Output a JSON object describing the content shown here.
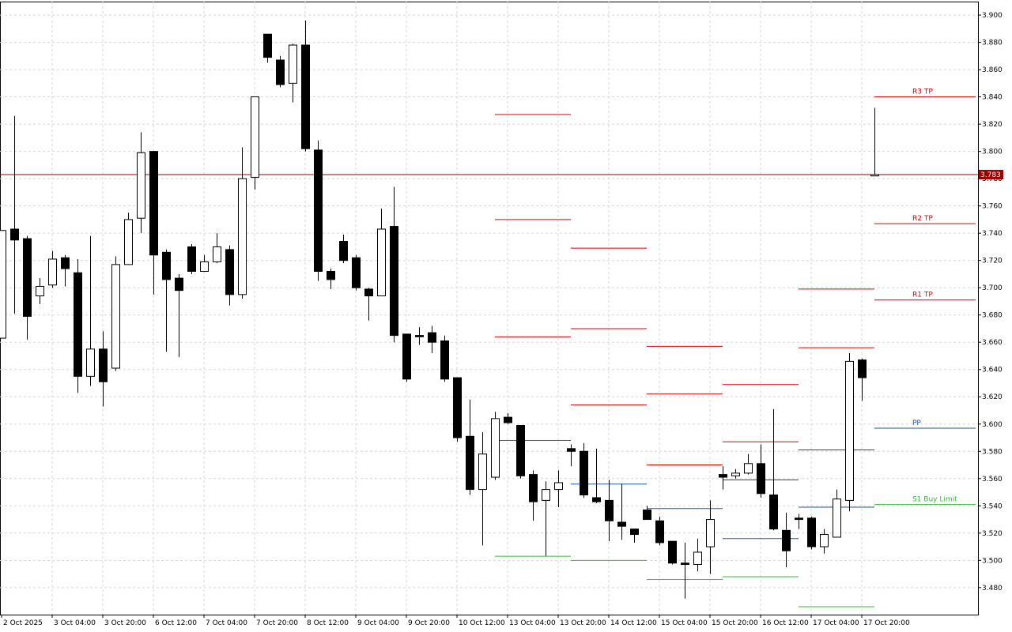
{
  "chart_data": {
    "type": "candlestick",
    "categories": [
      "2 Oct 2025",
      null,
      null,
      null,
      "3 Oct 04:00",
      null,
      null,
      null,
      "3 Oct 20:00",
      null,
      null,
      null,
      "6 Oct 12:00",
      null,
      null,
      null,
      "7 Oct 04:00",
      null,
      null,
      null,
      "7 Oct 20:00",
      null,
      null,
      null,
      "8 Oct 12:00",
      null,
      null,
      null,
      "9 Oct 04:00",
      null,
      null,
      null,
      "9 Oct 20:00",
      null,
      null,
      null,
      "10 Oct 12:00",
      null,
      null,
      null,
      "13 Oct 04:00",
      null,
      null,
      null,
      "13 Oct 20:00",
      null,
      null,
      null,
      "14 Oct 12:00",
      null,
      null,
      null,
      "15 Oct 04:00",
      null,
      null,
      null,
      "15 Oct 20:00",
      null,
      null,
      null,
      "16 Oct 12:00",
      null,
      null,
      null,
      "17 Oct 04:00",
      null,
      null,
      null,
      "17 Oct 20:00",
      null
    ],
    "open": [
      3.663,
      3.743,
      3.736,
      3.694,
      3.702,
      3.722,
      3.711,
      3.635,
      3.655,
      3.641,
      3.717,
      3.751,
      3.8,
      3.726,
      3.707,
      3.73,
      3.712,
      3.719,
      3.728,
      3.695,
      3.781,
      3.886,
      3.867,
      3.85,
      3.878,
      3.801,
      3.712,
      3.734,
      3.722,
      3.699,
      3.694,
      3.745,
      3.666,
      3.665,
      3.667,
      3.661,
      3.634,
      3.591,
      3.552,
      3.561,
      3.605,
      3.599,
      3.563,
      3.544,
      3.552,
      3.582,
      3.58,
      3.546,
      3.544,
      3.528,
      3.523,
      3.537,
      3.529,
      3.514,
      3.498,
      3.497,
      3.51,
      3.563,
      3.562,
      3.564,
      3.571,
      3.548,
      3.522,
      3.531,
      3.531,
      3.51,
      3.517,
      3.544,
      3.647,
      3.782
    ],
    "high": [
      3.742,
      3.826,
      3.738,
      3.707,
      3.727,
      3.724,
      3.721,
      3.738,
      3.668,
      3.723,
      3.755,
      3.814,
      3.8,
      3.728,
      3.71,
      3.732,
      3.724,
      3.74,
      3.731,
      3.803,
      3.84,
      3.886,
      3.87,
      3.879,
      3.896,
      3.808,
      3.714,
      3.739,
      3.724,
      3.7,
      3.758,
      3.774,
      3.666,
      3.671,
      3.672,
      3.665,
      3.634,
      3.618,
      3.594,
      3.609,
      3.608,
      3.599,
      3.566,
      3.558,
      3.566,
      3.585,
      3.586,
      3.582,
      3.559,
      3.556,
      3.523,
      3.54,
      3.532,
      3.514,
      3.513,
      3.516,
      3.544,
      3.569,
      3.567,
      3.578,
      3.585,
      3.611,
      3.535,
      3.534,
      3.532,
      3.523,
      3.552,
      3.652,
      3.648,
      3.832
    ],
    "low": [
      3.663,
      3.681,
      3.662,
      3.688,
      3.7,
      3.701,
      3.623,
      3.628,
      3.613,
      3.639,
      3.717,
      3.74,
      3.695,
      3.653,
      3.649,
      3.71,
      3.712,
      3.718,
      3.687,
      3.692,
      3.772,
      3.865,
      3.847,
      3.836,
      3.8,
      3.705,
      3.699,
      3.718,
      3.698,
      3.676,
      3.694,
      3.66,
      3.631,
      3.658,
      3.652,
      3.631,
      3.587,
      3.548,
      3.511,
      3.559,
      3.6,
      3.56,
      3.529,
      3.503,
      3.539,
      3.569,
      3.546,
      3.542,
      3.514,
      3.515,
      3.513,
      3.53,
      3.511,
      3.497,
      3.472,
      3.492,
      3.49,
      3.552,
      3.56,
      3.563,
      3.546,
      3.522,
      3.495,
      3.523,
      3.508,
      3.505,
      3.517,
      3.536,
      3.617,
      3.782
    ],
    "close": [
      3.742,
      3.735,
      3.679,
      3.701,
      3.721,
      3.714,
      3.635,
      3.655,
      3.631,
      3.717,
      3.75,
      3.799,
      3.724,
      3.706,
      3.698,
      3.712,
      3.719,
      3.73,
      3.695,
      3.78,
      3.84,
      3.869,
      3.849,
      3.878,
      3.802,
      3.712,
      3.706,
      3.72,
      3.7,
      3.694,
      3.743,
      3.665,
      3.633,
      3.664,
      3.66,
      3.633,
      3.59,
      3.552,
      3.578,
      3.604,
      3.601,
      3.562,
      3.543,
      3.552,
      3.557,
      3.58,
      3.548,
      3.543,
      3.529,
      3.525,
      3.519,
      3.53,
      3.513,
      3.498,
      3.497,
      3.506,
      3.53,
      3.561,
      3.564,
      3.571,
      3.549,
      3.523,
      3.507,
      3.53,
      3.51,
      3.519,
      3.545,
      3.646,
      3.634,
      3.783
    ],
    "up_color": "#ffffff",
    "down_color": "#000000",
    "ylim": [
      3.4602,
      3.9099
    ],
    "yticks": [
      {
        "value": 3.48,
        "label": "3.480"
      },
      {
        "value": 3.5,
        "label": "3.500"
      },
      {
        "value": 3.52,
        "label": "3.520"
      },
      {
        "value": 3.54,
        "label": "3.540"
      },
      {
        "value": 3.56,
        "label": "3.560"
      },
      {
        "value": 3.58,
        "label": "3.580"
      },
      {
        "value": 3.6,
        "label": "3.600"
      },
      {
        "value": 3.62,
        "label": "3.620"
      },
      {
        "value": 3.64,
        "label": "3.640"
      },
      {
        "value": 3.66,
        "label": "3.660"
      },
      {
        "value": 3.68,
        "label": "3.680"
      },
      {
        "value": 3.7,
        "label": "3.700"
      },
      {
        "value": 3.72,
        "label": "3.720"
      },
      {
        "value": 3.74,
        "label": "3.740"
      },
      {
        "value": 3.76,
        "label": "3.760"
      },
      {
        "value": 3.78,
        "label": "3.780"
      },
      {
        "value": 3.8,
        "label": "3.800"
      },
      {
        "value": 3.82,
        "label": "3.820"
      },
      {
        "value": 3.84,
        "label": "3.840"
      },
      {
        "value": 3.86,
        "label": "3.860"
      },
      {
        "value": 3.88,
        "label": "3.880"
      },
      {
        "value": 3.9,
        "label": "3.900"
      }
    ],
    "grid": true,
    "current_price": {
      "value": 3.783,
      "color": "#a00000"
    },
    "levels": [
      {
        "value": 3.827,
        "start": 39,
        "end": 45,
        "color": "#e00000"
      },
      {
        "value": 3.75,
        "start": 39,
        "end": 45,
        "color": "#e00000"
      },
      {
        "value": 3.664,
        "start": 39,
        "end": 45,
        "color": "#e00000"
      },
      {
        "value": 3.588,
        "start": 39,
        "end": 45,
        "color": "#1e5aa0"
      },
      {
        "value": 3.503,
        "start": 39,
        "end": 45,
        "color": "#3cb83c"
      },
      {
        "value": 3.729,
        "start": 45,
        "end": 51,
        "color": "#e00000"
      },
      {
        "value": 3.67,
        "start": 45,
        "end": 51,
        "color": "#e00000"
      },
      {
        "value": 3.614,
        "start": 45,
        "end": 51,
        "color": "#e00000"
      },
      {
        "value": 3.556,
        "start": 45,
        "end": 51,
        "color": "#1e5aa0"
      },
      {
        "value": 3.5,
        "start": 45,
        "end": 51,
        "color": "#3cb83c"
      },
      {
        "value": 3.657,
        "start": 51,
        "end": 57,
        "color": "#e00000"
      },
      {
        "value": 3.622,
        "start": 51,
        "end": 57,
        "color": "#e00000"
      },
      {
        "value": 3.57,
        "start": 51,
        "end": 57,
        "color": "#e00000"
      },
      {
        "value": 3.538,
        "start": 51,
        "end": 57,
        "color": "#1e5aa0"
      },
      {
        "value": 3.486,
        "start": 51,
        "end": 57,
        "color": "#3cb83c"
      },
      {
        "value": 3.629,
        "start": 57,
        "end": 63,
        "color": "#e00000"
      },
      {
        "value": 3.587,
        "start": 57,
        "end": 63,
        "color": "#e00000"
      },
      {
        "value": 3.559,
        "start": 57,
        "end": 63,
        "color": "#e00000"
      },
      {
        "value": 3.516,
        "start": 57,
        "end": 63,
        "color": "#1e5aa0"
      },
      {
        "value": 3.488,
        "start": 57,
        "end": 63,
        "color": "#3cb83c"
      },
      {
        "value": 3.699,
        "start": 63,
        "end": 69,
        "color": "#e00000"
      },
      {
        "value": 3.656,
        "start": 63,
        "end": 69,
        "color": "#e00000"
      },
      {
        "value": 3.581,
        "start": 63,
        "end": 69,
        "color": "#e00000"
      },
      {
        "value": 3.539,
        "start": 63,
        "end": 69,
        "color": "#1e5aa0"
      },
      {
        "value": 3.466,
        "start": 63,
        "end": 69,
        "color": "#3cb83c"
      },
      {
        "value": 3.84,
        "start": 69,
        "end": 77,
        "color": "#e00000",
        "label": "R3 TP"
      },
      {
        "value": 3.747,
        "start": 69,
        "end": 77,
        "color": "#e00000",
        "label": "R2 TP"
      },
      {
        "value": 3.691,
        "start": 69,
        "end": 77,
        "color": "#e00000",
        "label": "R1 TP"
      },
      {
        "value": 3.597,
        "start": 69,
        "end": 77,
        "color": "#1e5aa0",
        "label": "PP"
      },
      {
        "value": 3.541,
        "start": 69,
        "end": 77,
        "color": "#3cb83c",
        "label": "S1 Buy Limit"
      }
    ]
  }
}
